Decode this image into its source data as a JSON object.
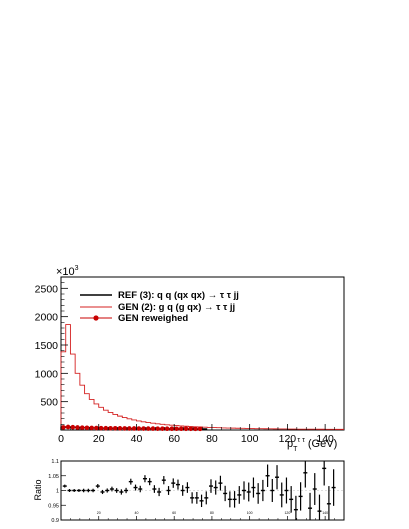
{
  "chart_data": [
    {
      "type": "line",
      "exponent_label": "×10",
      "exponent_power": "3",
      "xlabel_main": "p",
      "xlabel_sub": "T",
      "xlabel_sup": "τ τ",
      "xlabel_unit": "(GeV)",
      "ylabel": "",
      "xlim": [
        0,
        150
      ],
      "ylim": [
        0,
        2700
      ],
      "x_ticks": [
        0,
        20,
        40,
        60,
        80,
        100,
        120,
        140
      ],
      "y_ticks": [
        500,
        1000,
        1500,
        2000,
        2500
      ],
      "grid": false,
      "legend_position": "top-left",
      "legend": [
        {
          "label": "REF (3): q q (qx qx) → τ τ jj",
          "color": "#000000",
          "style": "line"
        },
        {
          "label": "GEN (2): g q (g qx) → τ τ jj",
          "color": "#d42020",
          "style": "line"
        },
        {
          "label": "GEN reweighed",
          "color": "#c80000",
          "style": "marker"
        }
      ],
      "series": [
        {
          "name": "GEN (2): g q (g qx) → τ τ jj",
          "color": "#d42020",
          "bin_width": 2.5,
          "x": [
            0,
            2.5,
            5,
            7.5,
            10,
            12.5,
            15,
            17.5,
            20,
            22.5,
            25,
            27.5,
            30,
            32.5,
            35,
            37.5,
            40,
            42.5,
            45,
            47.5,
            50,
            52.5,
            55,
            57.5,
            60,
            62.5,
            65,
            67.5,
            70,
            72.5,
            75,
            77.5,
            80,
            82.5,
            85,
            87.5,
            90,
            92.5,
            95,
            97.5,
            100,
            102.5,
            105,
            107.5,
            110,
            112.5,
            115,
            117.5,
            120,
            122.5,
            125,
            127.5,
            130,
            132.5,
            135,
            137.5,
            140,
            142.5,
            145,
            147.5
          ],
          "values": [
            1380,
            1860,
            1340,
            1000,
            790,
            640,
            540,
            460,
            400,
            350,
            310,
            275,
            245,
            220,
            198,
            178,
            160,
            145,
            132,
            120,
            110,
            100,
            92,
            85,
            78,
            72,
            66,
            61,
            57,
            53,
            49,
            46,
            43,
            40,
            37,
            35,
            33,
            31,
            29,
            27,
            25,
            24,
            23,
            22,
            21,
            20,
            19,
            18,
            17,
            16,
            15,
            15,
            14,
            14,
            13,
            13,
            12,
            12,
            11,
            11
          ]
        },
        {
          "name": "REF (3): q q (qx qx) → τ τ jj",
          "color": "#000000",
          "bin_width": 2.5,
          "x": [
            0,
            2.5,
            5,
            7.5,
            10,
            12.5,
            15,
            17.5,
            20,
            22.5,
            25,
            27.5,
            30,
            32.5,
            35,
            37.5,
            40,
            42.5,
            45,
            47.5,
            50,
            52.5,
            55,
            57.5,
            60,
            62.5,
            65,
            67.5,
            70,
            72.5,
            75
          ],
          "values": [
            48,
            55,
            50,
            45,
            42,
            39,
            37,
            35,
            33,
            32,
            31,
            30,
            29,
            28,
            27,
            27,
            26,
            26,
            25,
            25,
            24,
            24,
            23,
            23,
            22,
            22,
            21,
            21,
            20,
            20,
            19
          ]
        },
        {
          "name": "GEN reweighed",
          "color": "#c80000",
          "x": [
            1.25,
            3.75,
            6.25,
            8.75,
            11.25,
            13.75,
            16.25,
            18.75,
            21.25,
            23.75,
            26.25,
            28.75,
            31.25,
            33.75,
            36.25,
            38.75,
            41.25,
            43.75,
            46.25,
            48.75,
            51.25,
            53.75,
            56.25,
            58.75,
            61.25,
            63.75,
            66.25,
            68.75,
            71.25,
            73.75
          ],
          "values": [
            46,
            54,
            49,
            45,
            42,
            39,
            37,
            35,
            33,
            32,
            31,
            30,
            29,
            28,
            27,
            27,
            26,
            26,
            25,
            25,
            24,
            24,
            23,
            23,
            22,
            22,
            21,
            21,
            20,
            20
          ]
        }
      ]
    },
    {
      "type": "scatter",
      "ylabel": "Ratio",
      "xlim": [
        0,
        150
      ],
      "ylim": [
        0.9,
        1.1
      ],
      "x_ticks": [
        20,
        40,
        60,
        80,
        100,
        120,
        140
      ],
      "y_ticks": [
        0.9,
        0.95,
        1,
        1.05,
        1.1
      ],
      "y_tick_labels": [
        "0.9",
        "0.95",
        "1",
        "1.05",
        "1.1"
      ],
      "grid": false,
      "series": [
        {
          "name": "",
          "color": "#000000",
          "x": [
            2,
            4.5,
            7,
            9.5,
            12,
            14.5,
            17,
            19.5,
            22,
            24.5,
            27,
            29.5,
            32,
            34.5,
            37,
            39.5,
            42,
            44.5,
            47,
            49.5,
            52,
            54.5,
            57,
            59.5,
            62,
            64.5,
            67,
            69.5,
            72,
            74.5,
            77,
            79.5,
            82,
            84.5,
            87,
            89.5,
            92,
            94.5,
            97,
            99.5,
            102,
            104.5,
            107,
            109.5,
            112,
            114.5,
            117,
            119.5,
            122,
            124.5,
            127,
            129.5,
            132,
            134.5,
            137,
            139.5,
            142,
            144.5
          ],
          "values": [
            1.015,
            1.0,
            1.0,
            1.0,
            1.0,
            1.0,
            1.0,
            1.015,
            0.995,
            1.0,
            1.005,
            1.0,
            0.995,
            1.0,
            1.03,
            1.01,
            1.005,
            1.04,
            1.03,
            1.005,
            0.995,
            1.035,
            1.0,
            1.025,
            1.02,
            1.0,
            1.01,
            0.975,
            0.975,
            0.965,
            0.975,
            1.015,
            1.01,
            1.025,
            0.99,
            0.97,
            0.97,
            0.985,
            1.0,
            0.995,
            1.01,
            0.99,
            1.0,
            1.05,
            1.0,
            1.045,
            0.985,
            1.0,
            0.97,
            0.935,
            0.98,
            1.06,
            0.94,
            1.005,
            0.93,
            1.075,
            0.955,
            1.01
          ],
          "errors": [
            0.005,
            0.005,
            0.005,
            0.005,
            0.006,
            0.006,
            0.006,
            0.007,
            0.007,
            0.007,
            0.008,
            0.008,
            0.009,
            0.009,
            0.01,
            0.01,
            0.011,
            0.012,
            0.012,
            0.013,
            0.014,
            0.014,
            0.015,
            0.016,
            0.017,
            0.018,
            0.018,
            0.019,
            0.02,
            0.021,
            0.022,
            0.023,
            0.024,
            0.025,
            0.026,
            0.027,
            0.028,
            0.03,
            0.031,
            0.032,
            0.034,
            0.035,
            0.036,
            0.038,
            0.039,
            0.041,
            0.042,
            0.044,
            0.045,
            0.047,
            0.048,
            0.05,
            0.052,
            0.054,
            0.056,
            0.058,
            0.06,
            0.062
          ]
        }
      ]
    }
  ]
}
